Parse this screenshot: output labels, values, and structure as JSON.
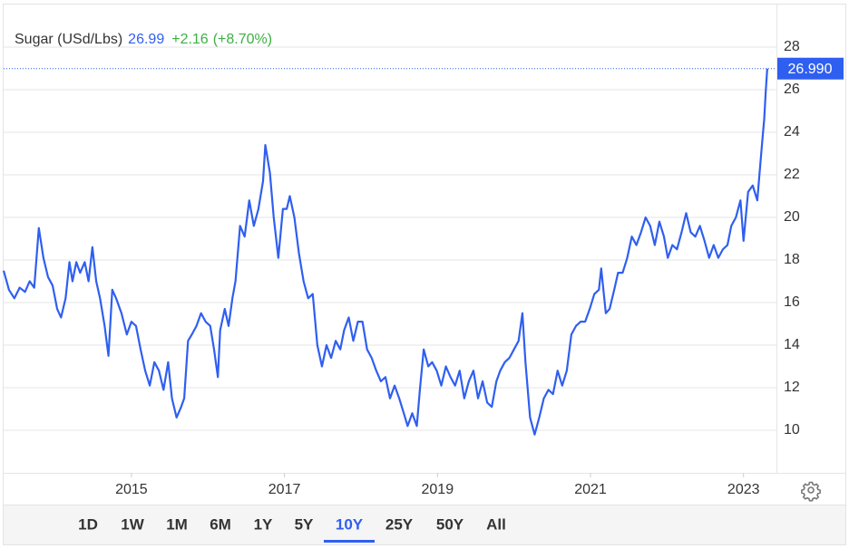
{
  "chart_data": {
    "type": "line",
    "name": "Sugar (USd/Lbs)",
    "last": 26.99,
    "change": "+2.16",
    "change_pct": "(+8.70%)",
    "price_tag": {
      "value": 26.99,
      "label": "26.990"
    },
    "color": "#2f5ff0",
    "grid": true,
    "xlim": [
      2013.33,
      2023.43
    ],
    "xticks": [
      2015,
      2017,
      2019,
      2021,
      2023
    ],
    "ylim": [
      8,
      30
    ],
    "yticks": [
      10,
      12,
      14,
      16,
      18,
      20,
      22,
      24,
      26,
      28
    ],
    "x": [
      2013.33,
      2013.4,
      2013.47,
      2013.54,
      2013.61,
      2013.67,
      2013.73,
      2013.79,
      2013.85,
      2013.91,
      2013.97,
      2014.03,
      2014.08,
      2014.14,
      2014.19,
      2014.23,
      2014.28,
      2014.33,
      2014.39,
      2014.44,
      2014.49,
      2014.54,
      2014.59,
      2014.65,
      2014.7,
      2014.75,
      2014.8,
      2014.87,
      2014.94,
      2015.0,
      2015.06,
      2015.12,
      2015.18,
      2015.24,
      2015.3,
      2015.36,
      2015.42,
      2015.48,
      2015.53,
      2015.59,
      2015.65,
      2015.69,
      2015.74,
      2015.79,
      2015.85,
      2015.91,
      2015.97,
      2016.03,
      2016.08,
      2016.13,
      2016.16,
      2016.22,
      2016.27,
      2016.32,
      2016.36,
      2016.42,
      2016.48,
      2016.54,
      2016.6,
      2016.66,
      2016.72,
      2016.75,
      2016.81,
      2016.86,
      2016.92,
      2016.98,
      2017.03,
      2017.07,
      2017.13,
      2017.19,
      2017.25,
      2017.31,
      2017.37,
      2017.43,
      2017.49,
      2017.55,
      2017.61,
      2017.67,
      2017.73,
      2017.78,
      2017.84,
      2017.9,
      2017.96,
      2018.02,
      2018.08,
      2018.14,
      2018.2,
      2018.26,
      2018.32,
      2018.38,
      2018.44,
      2018.5,
      2018.56,
      2018.61,
      2018.67,
      2018.73,
      2018.77,
      2018.82,
      2018.88,
      2018.93,
      2018.99,
      2019.05,
      2019.11,
      2019.17,
      2019.23,
      2019.29,
      2019.35,
      2019.41,
      2019.47,
      2019.53,
      2019.59,
      2019.65,
      2019.71,
      2019.77,
      2019.82,
      2019.88,
      2019.94,
      2020.0,
      2020.06,
      2020.11,
      2020.15,
      2020.21,
      2020.27,
      2020.33,
      2020.39,
      2020.45,
      2020.51,
      2020.57,
      2020.63,
      2020.69,
      2020.75,
      2020.81,
      2020.87,
      2020.93,
      2020.99,
      2021.05,
      2021.11,
      2021.14,
      2021.2,
      2021.25,
      2021.31,
      2021.36,
      2021.42,
      2021.48,
      2021.54,
      2021.6,
      2021.66,
      2021.72,
      2021.78,
      2021.84,
      2021.9,
      2021.96,
      2022.01,
      2022.07,
      2022.13,
      2022.19,
      2022.25,
      2022.31,
      2022.37,
      2022.43,
      2022.49,
      2022.55,
      2022.61,
      2022.67,
      2022.73,
      2022.79,
      2022.84,
      2022.9,
      2022.96,
      2023.0,
      2023.06,
      2023.12,
      2023.18,
      2023.21,
      2023.25,
      2023.27,
      2023.29,
      2023.31
    ],
    "values": [
      17.5,
      16.6,
      16.2,
      16.7,
      16.5,
      17.0,
      16.7,
      19.5,
      18.1,
      17.2,
      16.8,
      15.7,
      15.3,
      16.2,
      17.9,
      17.0,
      17.9,
      17.4,
      17.9,
      17.0,
      18.6,
      17.0,
      16.2,
      14.9,
      13.5,
      16.6,
      16.2,
      15.5,
      14.5,
      15.1,
      14.9,
      13.8,
      12.8,
      12.1,
      13.2,
      12.8,
      11.9,
      13.2,
      11.5,
      10.6,
      11.1,
      11.5,
      14.2,
      14.5,
      14.9,
      15.5,
      15.1,
      14.9,
      13.8,
      12.5,
      14.7,
      15.7,
      14.9,
      16.2,
      17.0,
      19.6,
      19.1,
      20.8,
      19.6,
      20.4,
      21.7,
      23.4,
      22.1,
      20.0,
      18.1,
      20.4,
      20.4,
      21.0,
      20.0,
      18.3,
      17.0,
      16.2,
      16.4,
      14.0,
      13.0,
      14.0,
      13.4,
      14.2,
      13.8,
      14.7,
      15.3,
      14.2,
      15.1,
      15.1,
      13.8,
      13.4,
      12.8,
      12.3,
      12.5,
      11.5,
      12.1,
      11.5,
      10.8,
      10.2,
      10.8,
      10.2,
      11.9,
      13.8,
      13.0,
      13.2,
      12.8,
      12.1,
      13.0,
      12.5,
      12.1,
      12.8,
      11.5,
      12.3,
      12.8,
      11.5,
      12.3,
      11.3,
      11.1,
      12.3,
      12.8,
      13.2,
      13.4,
      13.8,
      14.2,
      15.5,
      13.2,
      10.6,
      9.8,
      10.6,
      11.5,
      11.9,
      11.7,
      12.8,
      12.1,
      12.8,
      14.5,
      14.9,
      15.1,
      15.1,
      15.7,
      16.4,
      16.6,
      17.6,
      15.5,
      15.7,
      16.6,
      17.4,
      17.4,
      18.1,
      19.1,
      18.7,
      19.3,
      20.0,
      19.6,
      18.7,
      19.8,
      19.1,
      18.1,
      18.7,
      18.5,
      19.3,
      20.2,
      19.3,
      19.1,
      19.6,
      18.9,
      18.1,
      18.7,
      18.1,
      18.5,
      18.7,
      19.6,
      20.0,
      20.8,
      18.9,
      21.2,
      21.5,
      20.8,
      22.1,
      23.8,
      24.6,
      25.9,
      26.99
    ],
    "ranges": [
      "1D",
      "1W",
      "1M",
      "6M",
      "1Y",
      "5Y",
      "10Y",
      "25Y",
      "50Y",
      "All"
    ],
    "selected_range": "10Y"
  }
}
